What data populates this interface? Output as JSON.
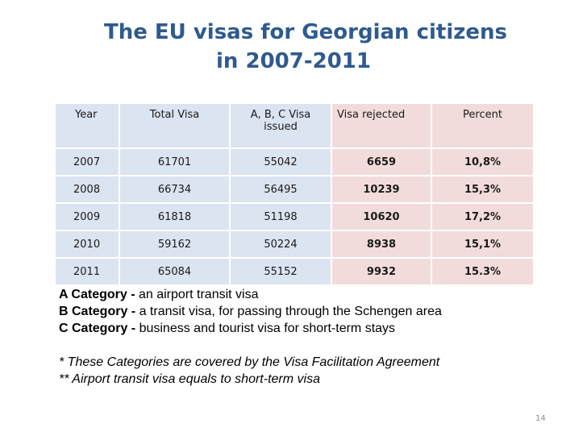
{
  "title": {
    "line1": "The EU visas for Georgian citizens",
    "line2": "in 2007-2011"
  },
  "table": {
    "headers": [
      "Year",
      "Total Visa",
      "A, B, C  Visa issued",
      "Visa rejected",
      "Percent"
    ],
    "rows": [
      [
        "2007",
        "61701",
        "55042",
        "6659",
        "10,8%"
      ],
      [
        "2008",
        "66734",
        "56495",
        "10239",
        "15,3%"
      ],
      [
        "2009",
        "61818",
        "51198",
        "10620",
        "17,2%"
      ],
      [
        "2010",
        "59162",
        "50224",
        "8938",
        "15,1%"
      ],
      [
        "2011",
        "65084",
        "55152",
        "9932",
        "15.3%"
      ]
    ]
  },
  "notes": {
    "a_label": "A Category - ",
    "a_text": "an airport transit visa",
    "b_label": "B Category - ",
    "b_text": "a transit visa, for passing through the Schengen area",
    "c_label": "C Category - ",
    "c_text": "business and tourist visa for short-term stays",
    "footnote1": "* These Categories are covered by the Visa Facilitation Agreement",
    "footnote2": "** Airport transit visa equals to short-term visa"
  },
  "page_number": "14",
  "colors": {
    "title": "#2f5a8e",
    "cell_blue": "#dbe4f1",
    "cell_pink": "#f2dcdb"
  }
}
